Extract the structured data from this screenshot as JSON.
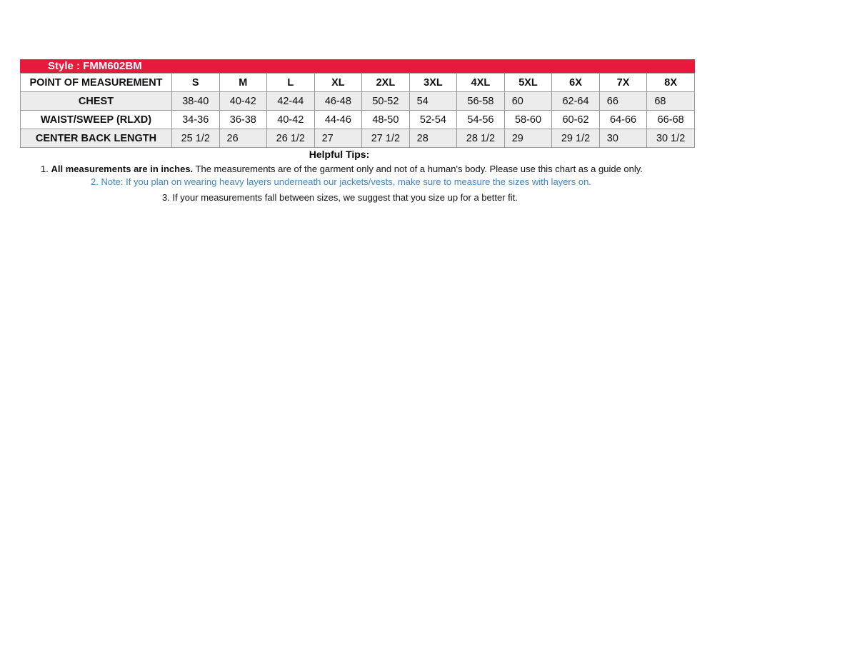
{
  "style_label": "Style : FMM602BM",
  "header": {
    "label": "POINT OF MEASUREMENT",
    "sizes": [
      "S",
      "M",
      "L",
      "XL",
      "2XL",
      "3XL",
      "4XL",
      "5XL",
      "6X",
      "7X",
      "8X"
    ]
  },
  "rows": [
    {
      "label": "CHEST",
      "values": [
        "38-40",
        "40-42",
        "42-44",
        "46-48",
        "50-52",
        "54",
        "56-58",
        "60",
        "62-64",
        "66",
        "68"
      ]
    },
    {
      "label": "WAIST/SWEEP (RLXD)",
      "values": [
        "34-36",
        "36-38",
        "40-42",
        "44-46",
        "48-50",
        "52-54",
        "54-56",
        "58-60",
        "60-62",
        "64-66",
        "66-68"
      ]
    },
    {
      "label": "CENTER BACK LENGTH",
      "values": [
        "25 1/2",
        "26",
        "26 1/2",
        "27",
        "27 1/2",
        "28",
        "28 1/2",
        "29",
        "29 1/2",
        "30",
        "30 1/2"
      ]
    }
  ],
  "tips": {
    "title": "Helpful Tips:",
    "tip1_prefix": "1. ",
    "tip1_bold": "All measurements are in inches.",
    "tip1_rest": " The measurements are of the garment only and not of a human's body. Please use this chart as a guide only.",
    "tip2": "2. Note: If you plan on wearing heavy layers underneath our jackets/vests, make sure to measure the sizes with layers on.",
    "tip3": "3. If your measurements fall between sizes, we suggest that you size up for a better fit."
  },
  "colors": {
    "brand_red": "#e8193c",
    "tip_blue": "#3d85c6",
    "row_grey": "#ececec"
  }
}
